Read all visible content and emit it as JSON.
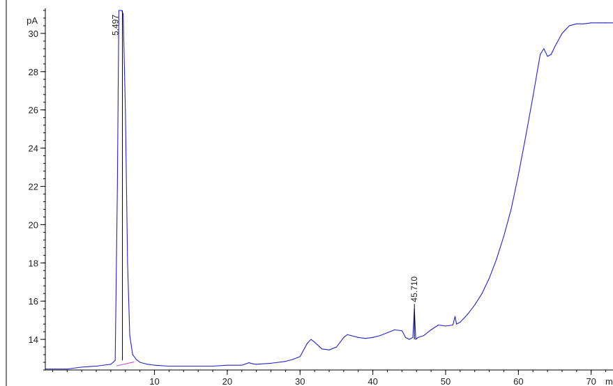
{
  "chart_data": {
    "type": "line",
    "ylabel": "pA",
    "xlabel": "mi",
    "xlim": [
      -5,
      73
    ],
    "ylim": [
      12.4,
      31.2
    ],
    "x_ticks": [
      10,
      20,
      30,
      40,
      50,
      60,
      70
    ],
    "x_tick_labels": [
      "10",
      "20",
      "30",
      "40",
      "50",
      "60",
      "70"
    ],
    "y_ticks": [
      14,
      16,
      18,
      20,
      22,
      24,
      26,
      28,
      30
    ],
    "y_tick_labels": [
      "14",
      "16",
      "18",
      "20",
      "22",
      "24",
      "26",
      "28",
      "30"
    ],
    "grid": false,
    "colors": {
      "signal": "#2424c8",
      "baseline": "#cc44cc",
      "peak_marker": "#000000",
      "axis": "#000000"
    },
    "peak_annotations": [
      {
        "label": "5.497",
        "x": 5.497
      },
      {
        "label": "45.710",
        "x": 45.71
      }
    ],
    "baseline_segment": {
      "x": [
        4.8,
        7.2
      ],
      "y": [
        12.62,
        12.82
      ]
    },
    "series": [
      {
        "x": [
          -5,
          -2,
          0,
          2,
          3,
          4,
          4.6,
          4.9,
          5.1,
          5.3,
          5.5,
          5.7,
          6.0,
          6.3,
          6.6,
          7.0,
          7.5,
          8,
          9,
          10,
          12,
          15,
          18,
          20,
          22,
          23,
          23.5,
          24,
          26,
          28,
          29,
          30,
          31,
          31.5,
          32,
          33,
          34,
          35,
          36,
          36.5,
          37,
          38,
          39,
          40,
          41,
          42,
          43,
          44,
          44.5,
          45,
          45.5,
          45.71,
          45.9,
          46.2,
          47,
          48,
          49,
          50,
          51,
          51.3,
          51.5,
          52,
          53,
          54,
          55,
          56,
          57,
          58,
          59,
          60,
          61,
          62,
          63,
          63.5,
          64,
          64.5,
          65,
          66,
          67,
          68,
          69,
          70,
          71,
          72,
          73
        ],
        "y": [
          12.45,
          12.45,
          12.55,
          12.6,
          12.65,
          12.7,
          12.9,
          22,
          32,
          33,
          33,
          31,
          26,
          18,
          14.2,
          13.2,
          12.95,
          12.8,
          12.7,
          12.65,
          12.6,
          12.6,
          12.6,
          12.65,
          12.65,
          12.78,
          12.72,
          12.7,
          12.75,
          12.85,
          12.95,
          13.1,
          13.8,
          14,
          13.85,
          13.5,
          13.45,
          13.6,
          14.1,
          14.25,
          14.2,
          14.1,
          14.05,
          14.1,
          14.2,
          14.35,
          14.5,
          14.45,
          14.1,
          14.0,
          14.1,
          15.6,
          14.0,
          14.1,
          14.2,
          14.5,
          14.75,
          14.7,
          14.75,
          15.2,
          14.8,
          14.9,
          15.3,
          15.8,
          16.4,
          17.2,
          18.2,
          19.4,
          20.8,
          22.6,
          24.6,
          26.7,
          28.9,
          29.2,
          28.8,
          28.9,
          29.3,
          30.0,
          30.4,
          30.5,
          30.5,
          30.55,
          30.55,
          30.55,
          30.55
        ]
      }
    ]
  }
}
